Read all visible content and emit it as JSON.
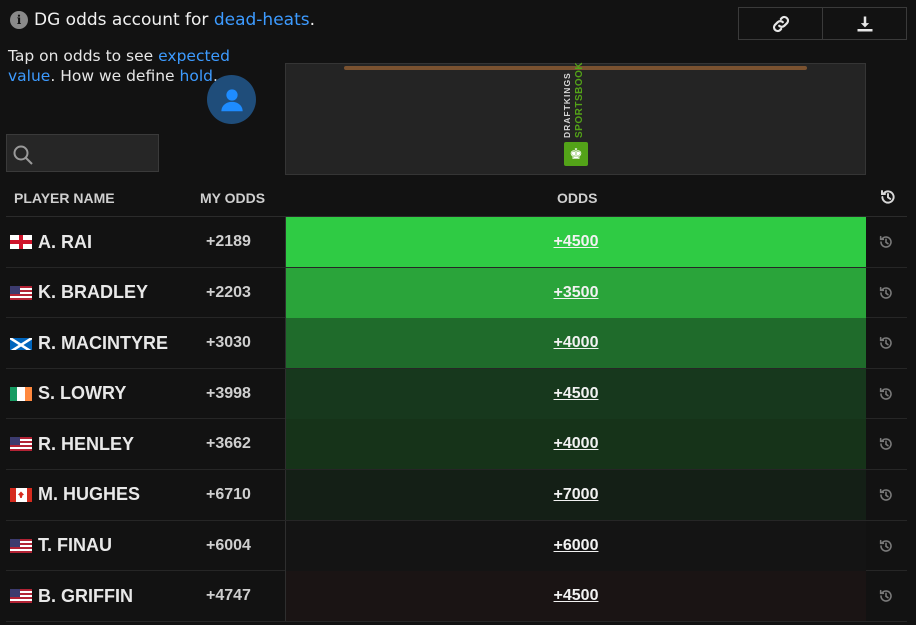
{
  "header": {
    "info_prefix": "DG odds account for ",
    "info_link": "dead-heats",
    "info_suffix": ".",
    "tap_prefix": "Tap on odds to see ",
    "tap_link1": "expected value",
    "tap_mid": ". How we define ",
    "tap_link2": "hold",
    "tap_suffix": "."
  },
  "toolbar": {
    "link_icon": "link-icon",
    "download_icon": "download-icon"
  },
  "search": {
    "placeholder": "",
    "value": ""
  },
  "sportsbook": {
    "name_top": "DRAFTKINGS",
    "name_bottom": "SPORTSBOOK",
    "logo_glyph": "♚",
    "brand_color": "#53a318"
  },
  "table": {
    "headers": {
      "name": "PLAYER NAME",
      "my_odds": "MY ODDS",
      "odds": "ODDS"
    },
    "rows": [
      {
        "flag": "england",
        "name": "A. RAI",
        "my_odds": "+2189",
        "odds": "+4500",
        "color": "#2fcb44"
      },
      {
        "flag": "usa",
        "name": "K. BRADLEY",
        "my_odds": "+2203",
        "odds": "+3500",
        "color": "#2aa43a"
      },
      {
        "flag": "scotland",
        "name": "R. MACINTYRE",
        "my_odds": "+3030",
        "odds": "+4000",
        "color": "#1f6b2b"
      },
      {
        "flag": "ireland",
        "name": "S. LOWRY",
        "my_odds": "+3998",
        "odds": "+4500",
        "color": "#17381d"
      },
      {
        "flag": "usa",
        "name": "R. HENLEY",
        "my_odds": "+3662",
        "odds": "+4000",
        "color": "#163319"
      },
      {
        "flag": "canada",
        "name": "M. HUGHES",
        "my_odds": "+6710",
        "odds": "+7000",
        "color": "#141f16"
      },
      {
        "flag": "usa",
        "name": "T. FINAU",
        "my_odds": "+6004",
        "odds": "+6000",
        "color": "#141414"
      },
      {
        "flag": "usa",
        "name": "B. GRIFFIN",
        "my_odds": "+4747",
        "odds": "+4500",
        "color": "#1a1414"
      }
    ]
  }
}
